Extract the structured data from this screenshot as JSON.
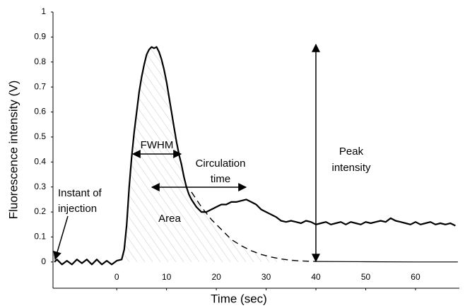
{
  "chart_data": {
    "type": "line",
    "xlabel": "Time (sec)",
    "ylabel": "Fluorescence intensity (V)",
    "xlim": [
      -12.8,
      68.8
    ],
    "ylim": [
      -0.105,
      1
    ],
    "xticks": [
      0,
      10,
      20,
      30,
      40,
      50,
      60
    ],
    "yticks": [
      0,
      0.1,
      0.2,
      0.3,
      0.4,
      0.5,
      0.6,
      0.7,
      0.8,
      0.9,
      1
    ],
    "series": [
      {
        "color": "#000000",
        "style": "solid",
        "width": 2.2,
        "x": [
          -12.5,
          -12,
          -11,
          -10,
          -9,
          -8,
          -7,
          -6,
          -5,
          -4,
          -3,
          -2,
          -1,
          0,
          1,
          1.5,
          2,
          2.5,
          3,
          3.5,
          4,
          4.5,
          5,
          5.5,
          6,
          6.5,
          7,
          7.5,
          8,
          8.5,
          9,
          9.5,
          10,
          10.5,
          11,
          11.5,
          12,
          12.5,
          13,
          13.5,
          14,
          14.5,
          15,
          16,
          17,
          18,
          19,
          20,
          21,
          22,
          23,
          24,
          25,
          26,
          27,
          28,
          29,
          30,
          31,
          32,
          33,
          34,
          35,
          36,
          37,
          38,
          39,
          40,
          41,
          42,
          43,
          44,
          45,
          46,
          47,
          48,
          49,
          50,
          51,
          52,
          53,
          54,
          55,
          56,
          57,
          58,
          59,
          60,
          61,
          62,
          63,
          64,
          65,
          66,
          67,
          68
        ],
        "values": [
          0,
          0.01,
          -0.01,
          0.005,
          -0.01,
          0.01,
          -0.005,
          0.01,
          -0.01,
          0.01,
          -0.01,
          0.005,
          -0.01,
          0.005,
          0.01,
          0.05,
          0.15,
          0.3,
          0.42,
          0.52,
          0.6,
          0.68,
          0.74,
          0.79,
          0.83,
          0.85,
          0.86,
          0.855,
          0.86,
          0.84,
          0.81,
          0.77,
          0.72,
          0.66,
          0.6,
          0.54,
          0.48,
          0.43,
          0.39,
          0.34,
          0.3,
          0.27,
          0.25,
          0.22,
          0.2,
          0.2,
          0.21,
          0.22,
          0.23,
          0.23,
          0.24,
          0.24,
          0.245,
          0.25,
          0.24,
          0.23,
          0.21,
          0.2,
          0.19,
          0.18,
          0.165,
          0.16,
          0.165,
          0.16,
          0.155,
          0.165,
          0.16,
          0.15,
          0.155,
          0.16,
          0.15,
          0.155,
          0.16,
          0.15,
          0.16,
          0.155,
          0.15,
          0.16,
          0.155,
          0.16,
          0.165,
          0.16,
          0.175,
          0.165,
          0.16,
          0.155,
          0.15,
          0.16,
          0.15,
          0.155,
          0.16,
          0.15,
          0.155,
          0.15,
          0.155,
          0.145
        ]
      },
      {
        "color": "#000000",
        "style": "dashed",
        "width": 1.4,
        "x": [
          15,
          17,
          19,
          21,
          23,
          25,
          27,
          29,
          31,
          33,
          35,
          37,
          40
        ],
        "values": [
          0.28,
          0.22,
          0.17,
          0.13,
          0.09,
          0.065,
          0.045,
          0.03,
          0.02,
          0.012,
          0.007,
          0.004,
          0.002
        ]
      },
      {
        "color": "#000000",
        "style": "solid",
        "width": 1.2,
        "x": [
          40,
          50,
          60,
          68.5
        ],
        "values": [
          0.002,
          0.001,
          0,
          0
        ]
      }
    ],
    "annotations": {
      "fwhm": "FWHM",
      "circulation": [
        "Circulation",
        "time"
      ],
      "peak": [
        "Peak",
        "intensity"
      ],
      "injection": [
        "Instant of",
        "injection"
      ],
      "area": "Area"
    }
  }
}
